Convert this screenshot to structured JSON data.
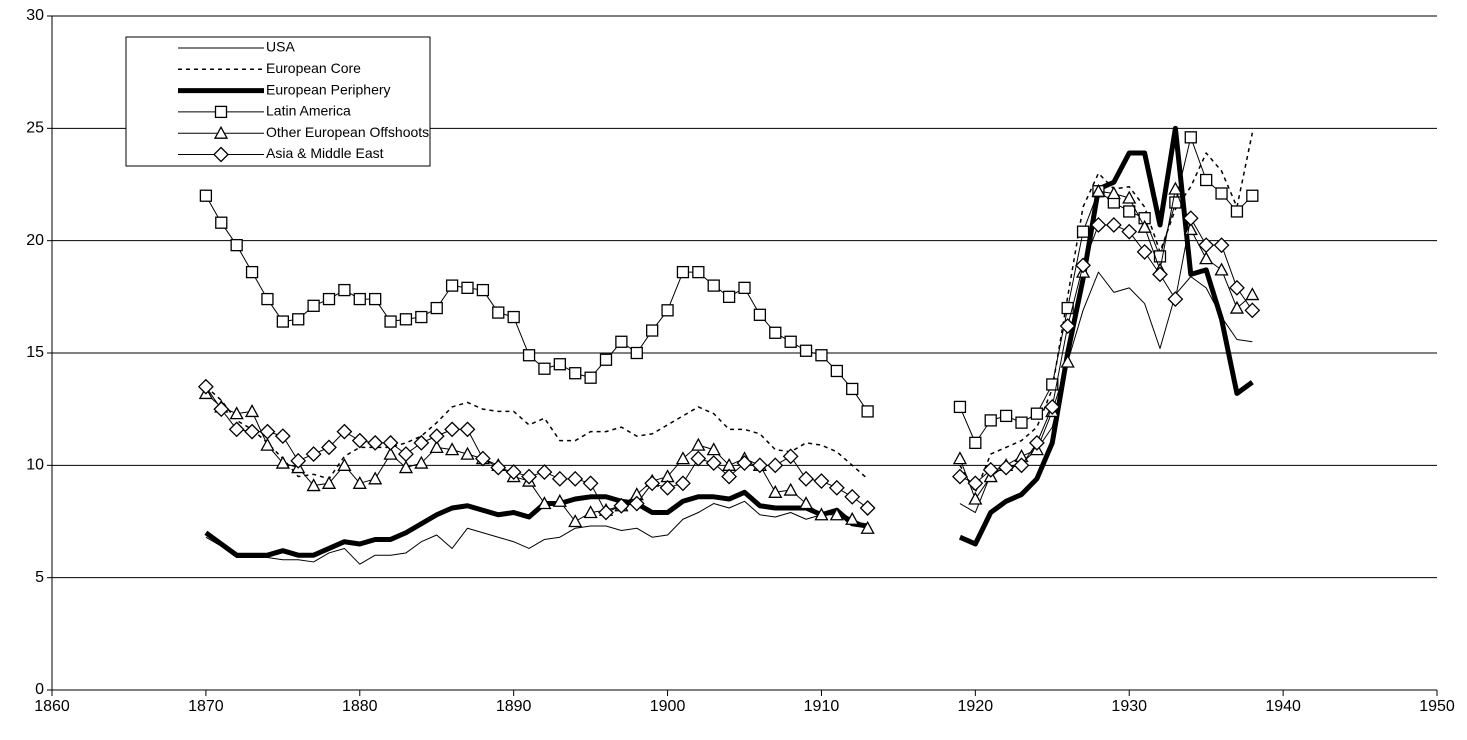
{
  "chart_data": {
    "type": "line",
    "x": [
      1870,
      1871,
      1872,
      1873,
      1874,
      1875,
      1876,
      1877,
      1878,
      1879,
      1880,
      1881,
      1882,
      1883,
      1884,
      1885,
      1886,
      1887,
      1888,
      1889,
      1890,
      1891,
      1892,
      1893,
      1894,
      1895,
      1896,
      1897,
      1898,
      1899,
      1900,
      1901,
      1902,
      1903,
      1904,
      1905,
      1906,
      1907,
      1908,
      1909,
      1910,
      1911,
      1912,
      1913,
      1914,
      1915,
      1916,
      1917,
      1918,
      1919,
      1920,
      1921,
      1922,
      1923,
      1924,
      1925,
      1926,
      1927,
      1928,
      1929,
      1930,
      1931,
      1932,
      1933,
      1934,
      1935,
      1936,
      1937,
      1938
    ],
    "series": [
      {
        "name": "USA",
        "color": "#000000",
        "line": "solid",
        "values": [
          6.8,
          6.4,
          5.9,
          5.9,
          5.9,
          5.8,
          5.8,
          5.7,
          6.1,
          6.3,
          5.6,
          6.0,
          6.0,
          6.1,
          6.6,
          6.9,
          6.3,
          7.2,
          7.0,
          6.8,
          6.6,
          6.3,
          6.7,
          6.8,
          7.2,
          7.3,
          7.3,
          7.1,
          7.2,
          6.8,
          6.9,
          7.6,
          7.9,
          8.3,
          8.1,
          8.4,
          7.8,
          7.7,
          7.9,
          7.6,
          7.8,
          8.0,
          7.6,
          7.3,
          null,
          null,
          null,
          null,
          null,
          8.3,
          7.9,
          9.6,
          9.9,
          10.1,
          10.7,
          11.7,
          14.6,
          16.9,
          18.6,
          17.7,
          17.9,
          17.2,
          15.2,
          17.6,
          18.4,
          17.9,
          16.6,
          15.6,
          15.5
        ]
      },
      {
        "name": "European Core",
        "color": "#000000",
        "line": "dashed",
        "values": [
          13.5,
          12.9,
          12.0,
          11.6,
          11.0,
          10.3,
          9.5,
          9.6,
          9.4,
          10.4,
          10.8,
          10.8,
          10.8,
          11.0,
          11.3,
          11.9,
          12.6,
          12.8,
          12.5,
          12.4,
          12.4,
          11.8,
          12.1,
          11.1,
          11.1,
          11.5,
          11.5,
          11.7,
          11.3,
          11.4,
          11.8,
          12.2,
          12.6,
          12.3,
          11.6,
          11.6,
          11.4,
          10.7,
          10.6,
          11.0,
          10.9,
          10.6,
          10.0,
          9.4,
          null,
          null,
          null,
          null,
          null,
          10.0,
          8.8,
          10.5,
          10.8,
          11.1,
          11.7,
          13.4,
          17.5,
          21.5,
          23.0,
          22.3,
          22.4,
          21.5,
          19.5,
          21.4,
          22.4,
          23.9,
          23.1,
          21.5,
          24.8
        ]
      },
      {
        "name": "European Periphery",
        "color": "#000000",
        "line": "bold",
        "values": [
          7.0,
          6.5,
          6.0,
          6.0,
          6.0,
          6.2,
          6.0,
          6.0,
          6.3,
          6.6,
          6.5,
          6.7,
          6.7,
          7.0,
          7.4,
          7.8,
          8.1,
          8.2,
          8.0,
          7.8,
          7.9,
          7.7,
          8.3,
          8.3,
          8.5,
          8.6,
          8.6,
          8.4,
          8.3,
          7.9,
          7.9,
          8.4,
          8.6,
          8.6,
          8.5,
          8.8,
          8.2,
          8.1,
          8.1,
          8.1,
          7.8,
          8.0,
          7.4,
          7.3,
          null,
          null,
          null,
          null,
          null,
          6.8,
          6.5,
          7.9,
          8.4,
          8.7,
          9.4,
          11.0,
          15.0,
          18.3,
          22.3,
          22.6,
          23.9,
          23.9,
          20.7,
          25.0,
          18.5,
          18.7,
          16.5,
          13.2,
          13.7
        ]
      },
      {
        "name": "Latin America",
        "color": "#000000",
        "line": "solid",
        "marker": "square",
        "values": [
          22.0,
          20.8,
          19.8,
          18.6,
          17.4,
          16.4,
          16.5,
          17.1,
          17.4,
          17.8,
          17.4,
          17.4,
          16.4,
          16.5,
          16.6,
          17.0,
          18.0,
          17.9,
          17.8,
          16.8,
          16.6,
          14.9,
          14.3,
          14.5,
          14.1,
          13.9,
          14.7,
          15.5,
          15.0,
          16.0,
          16.9,
          18.6,
          18.6,
          18.0,
          17.5,
          17.9,
          16.7,
          15.9,
          15.5,
          15.1,
          14.9,
          14.2,
          13.4,
          12.4,
          null,
          null,
          null,
          null,
          null,
          12.6,
          11.0,
          12.0,
          12.2,
          11.9,
          12.3,
          13.6,
          17.0,
          20.4,
          22.2,
          21.7,
          21.3,
          21.0,
          19.3,
          21.7,
          24.6,
          22.7,
          22.1,
          21.3,
          22.0
        ]
      },
      {
        "name": "Other European Offshoots",
        "color": "#000000",
        "line": "solid",
        "marker": "triangle",
        "values": [
          13.2,
          12.6,
          12.3,
          12.4,
          10.9,
          10.1,
          9.9,
          9.1,
          9.2,
          10.0,
          9.2,
          9.4,
          10.5,
          9.9,
          10.1,
          10.8,
          10.7,
          10.5,
          10.3,
          10.0,
          9.5,
          9.3,
          8.3,
          8.4,
          7.5,
          7.9,
          8.0,
          8.2,
          8.7,
          9.3,
          9.5,
          10.3,
          10.9,
          10.7,
          10.0,
          10.3,
          10.0,
          8.8,
          8.9,
          8.3,
          7.8,
          7.8,
          7.6,
          7.2,
          null,
          null,
          null,
          null,
          null,
          10.3,
          8.5,
          9.5,
          10.0,
          10.4,
          10.7,
          12.4,
          14.6,
          18.6,
          22.2,
          22.1,
          21.9,
          20.6,
          18.7,
          22.3,
          20.5,
          19.2,
          18.7,
          17.0,
          17.6
        ]
      },
      {
        "name": "Asia & Middle East",
        "color": "#000000",
        "line": "solid",
        "marker": "diamond",
        "values": [
          13.5,
          12.5,
          11.6,
          11.5,
          11.5,
          11.3,
          10.2,
          10.5,
          10.8,
          11.5,
          11.1,
          11.0,
          11.0,
          10.5,
          11.0,
          11.3,
          11.6,
          11.6,
          10.3,
          9.9,
          9.7,
          9.5,
          9.7,
          9.4,
          9.4,
          9.2,
          7.9,
          8.2,
          8.3,
          9.2,
          9.0,
          9.2,
          10.3,
          10.1,
          9.5,
          10.1,
          10.0,
          10.0,
          10.4,
          9.4,
          9.3,
          9.0,
          8.6,
          8.1,
          null,
          null,
          null,
          null,
          null,
          9.5,
          9.2,
          9.8,
          9.9,
          10.0,
          11.0,
          12.6,
          16.2,
          18.9,
          20.7,
          20.7,
          20.4,
          19.5,
          18.5,
          17.4,
          21.0,
          19.8,
          19.8,
          17.9,
          16.9
        ]
      }
    ],
    "xlim": [
      1860,
      1950
    ],
    "xticks": [
      1860,
      1870,
      1880,
      1890,
      1900,
      1910,
      1920,
      1930,
      1940,
      1950
    ],
    "ylim": [
      0,
      30
    ],
    "yticks": [
      0,
      5,
      10,
      15,
      20,
      25,
      30
    ],
    "grid": true,
    "legend": "upper left"
  }
}
